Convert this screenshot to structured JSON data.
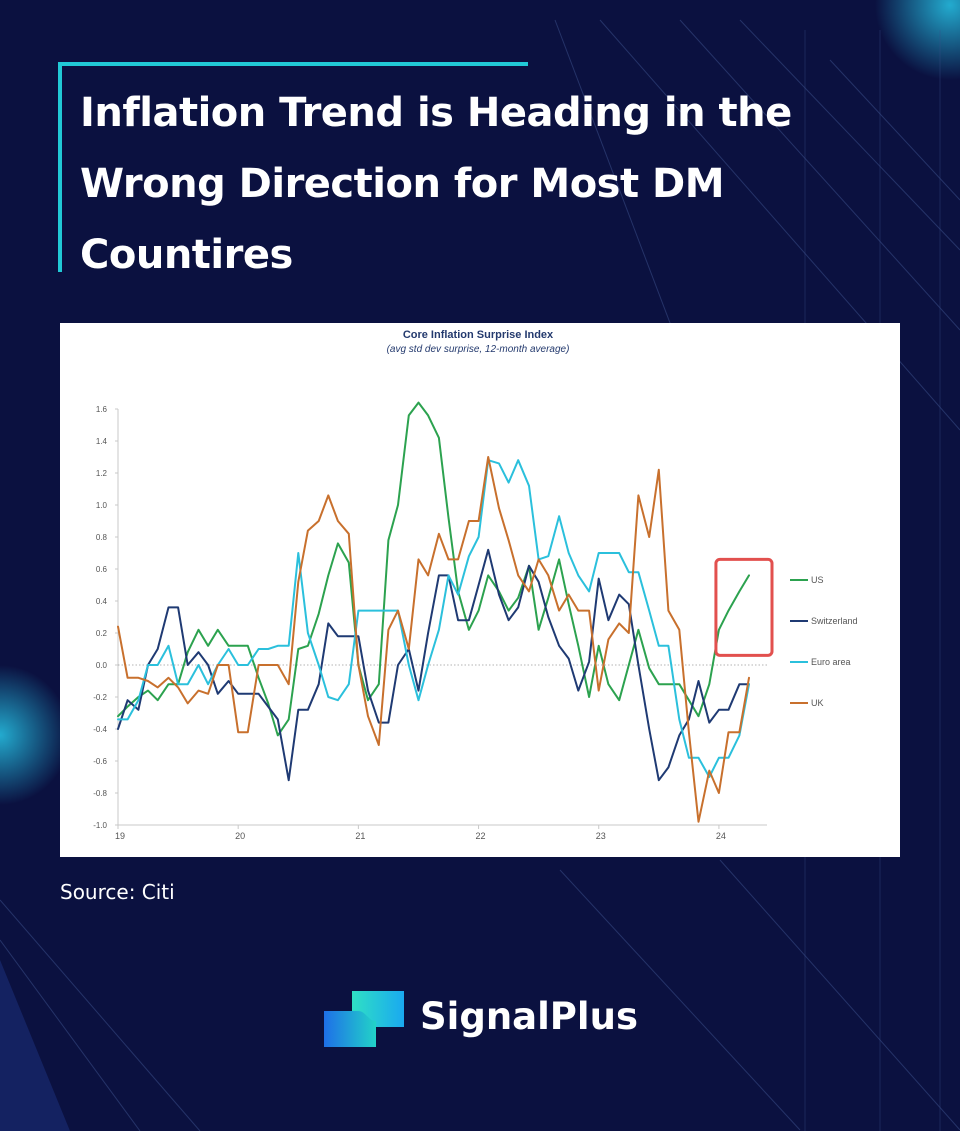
{
  "header": {
    "title_lines": [
      "Inflation Trend is Heading in the",
      "Wrong Direction for Most DM",
      "Countires"
    ]
  },
  "source": "Source: Citi",
  "brand": {
    "name": "SignalPlus",
    "logo_icon": "signalplus-logo-icon"
  },
  "colors": {
    "background": "#0b1140",
    "accent": "#21c9d6",
    "us": "#2ca24f",
    "switzerland": "#1f3a73",
    "euro_area": "#2bc0dc",
    "uk": "#c8702d",
    "highlight_box": "#e2504e"
  },
  "chart_data": {
    "type": "line",
    "title": "Core Inflation Surprise Index",
    "subtitle": "(avg std dev surprise, 12-month average)",
    "xlabel": "",
    "ylabel": "",
    "xlim": [
      2019.0,
      2024.4
    ],
    "ylim": [
      -1.0,
      1.6
    ],
    "yticks": [
      -1.0,
      -0.8,
      -0.6,
      -0.4,
      -0.2,
      0.0,
      0.2,
      0.4,
      0.6,
      0.8,
      1.0,
      1.2,
      1.4,
      1.6
    ],
    "ytick_labels": [
      "-1.0",
      "-0.8",
      "-0.6",
      "-0.4",
      "-0.2",
      "0.0",
      "0.2",
      "0.4",
      "0.6",
      "0.8",
      "1.0",
      "1.2",
      "1.4",
      "1.6"
    ],
    "xticks": [
      2019,
      2020,
      2021,
      2022,
      2023,
      2024
    ],
    "xtick_labels": [
      "19",
      "20",
      "21",
      "22",
      "23",
      "24"
    ],
    "grid": false,
    "zero_line": true,
    "legend_position": "right",
    "highlight": {
      "x_range": [
        2024.0,
        2024.4
      ],
      "y_range": [
        0.06,
        0.66
      ]
    },
    "series": [
      {
        "name": "US",
        "color": "#2ca24f",
        "x": [
          2019.0,
          2019.08,
          2019.17,
          2019.25,
          2019.33,
          2019.42,
          2019.5,
          2019.58,
          2019.67,
          2019.75,
          2019.83,
          2019.92,
          2020.0,
          2020.08,
          2020.17,
          2020.25,
          2020.33,
          2020.42,
          2020.5,
          2020.58,
          2020.67,
          2020.75,
          2020.83,
          2020.92,
          2021.0,
          2021.08,
          2021.17,
          2021.25,
          2021.33,
          2021.42,
          2021.5,
          2021.58,
          2021.67,
          2021.75,
          2021.83,
          2021.92,
          2022.0,
          2022.08,
          2022.17,
          2022.25,
          2022.33,
          2022.42,
          2022.5,
          2022.58,
          2022.67,
          2022.75,
          2022.83,
          2022.92,
          2023.0,
          2023.08,
          2023.17,
          2023.25,
          2023.33,
          2023.42,
          2023.5,
          2023.58,
          2023.67,
          2023.75,
          2023.83,
          2023.92,
          2024.0,
          2024.08,
          2024.17,
          2024.25
        ],
        "y": [
          -0.32,
          -0.26,
          -0.2,
          -0.16,
          -0.22,
          -0.12,
          -0.12,
          0.08,
          0.22,
          0.12,
          0.22,
          0.12,
          0.12,
          0.12,
          -0.08,
          -0.24,
          -0.44,
          -0.34,
          0.1,
          0.12,
          0.32,
          0.56,
          0.76,
          0.64,
          0.0,
          -0.22,
          -0.12,
          0.78,
          1.0,
          1.56,
          1.64,
          1.56,
          1.42,
          0.92,
          0.46,
          0.22,
          0.34,
          0.56,
          0.46,
          0.34,
          0.42,
          0.62,
          0.22,
          0.42,
          0.66,
          0.38,
          0.12,
          -0.2,
          0.12,
          -0.12,
          -0.22,
          0.0,
          0.22,
          -0.02,
          -0.12,
          -0.12,
          -0.12,
          -0.22,
          -0.32,
          -0.12,
          0.22,
          0.34,
          0.46,
          0.56
        ]
      },
      {
        "name": "Switzerland",
        "color": "#1f3a73",
        "x": [
          2019.0,
          2019.08,
          2019.17,
          2019.25,
          2019.33,
          2019.42,
          2019.5,
          2019.58,
          2019.67,
          2019.75,
          2019.83,
          2019.92,
          2020.0,
          2020.08,
          2020.17,
          2020.25,
          2020.33,
          2020.42,
          2020.5,
          2020.58,
          2020.67,
          2020.75,
          2020.83,
          2020.92,
          2021.0,
          2021.08,
          2021.17,
          2021.25,
          2021.33,
          2021.42,
          2021.5,
          2021.58,
          2021.67,
          2021.75,
          2021.83,
          2021.92,
          2022.0,
          2022.08,
          2022.17,
          2022.25,
          2022.33,
          2022.42,
          2022.5,
          2022.58,
          2022.67,
          2022.75,
          2022.83,
          2022.92,
          2023.0,
          2023.08,
          2023.17,
          2023.25,
          2023.33,
          2023.42,
          2023.5,
          2023.58,
          2023.67,
          2023.75,
          2023.83,
          2023.92,
          2024.0,
          2024.08,
          2024.17,
          2024.25
        ],
        "y": [
          -0.4,
          -0.22,
          -0.28,
          0.0,
          0.1,
          0.36,
          0.36,
          0.0,
          0.08,
          0.0,
          -0.18,
          -0.1,
          -0.18,
          -0.18,
          -0.18,
          -0.26,
          -0.34,
          -0.72,
          -0.28,
          -0.28,
          -0.12,
          0.26,
          0.18,
          0.18,
          0.18,
          -0.16,
          -0.36,
          -0.36,
          0.0,
          0.1,
          -0.16,
          0.2,
          0.56,
          0.56,
          0.28,
          0.28,
          0.5,
          0.72,
          0.44,
          0.28,
          0.36,
          0.62,
          0.52,
          0.3,
          0.12,
          0.04,
          -0.16,
          0.02,
          0.54,
          0.28,
          0.44,
          0.38,
          0.0,
          -0.4,
          -0.72,
          -0.64,
          -0.44,
          -0.34,
          -0.1,
          -0.36,
          -0.28,
          -0.28,
          -0.12,
          -0.12
        ]
      },
      {
        "name": "Euro area",
        "color": "#2bc0dc",
        "x": [
          2019.0,
          2019.08,
          2019.17,
          2019.25,
          2019.33,
          2019.42,
          2019.5,
          2019.58,
          2019.67,
          2019.75,
          2019.83,
          2019.92,
          2020.0,
          2020.08,
          2020.17,
          2020.25,
          2020.33,
          2020.42,
          2020.5,
          2020.58,
          2020.67,
          2020.75,
          2020.83,
          2020.92,
          2021.0,
          2021.08,
          2021.17,
          2021.25,
          2021.33,
          2021.42,
          2021.5,
          2021.58,
          2021.67,
          2021.75,
          2021.83,
          2021.92,
          2022.0,
          2022.08,
          2022.17,
          2022.25,
          2022.33,
          2022.42,
          2022.5,
          2022.58,
          2022.67,
          2022.75,
          2022.83,
          2022.92,
          2023.0,
          2023.08,
          2023.17,
          2023.25,
          2023.33,
          2023.42,
          2023.5,
          2023.58,
          2023.67,
          2023.75,
          2023.83,
          2023.92,
          2024.0,
          2024.08,
          2024.17,
          2024.25
        ],
        "y": [
          -0.34,
          -0.34,
          -0.22,
          0.0,
          0.0,
          0.12,
          -0.12,
          -0.12,
          0.0,
          -0.12,
          0.0,
          0.1,
          0.0,
          0.0,
          0.1,
          0.1,
          0.12,
          0.12,
          0.7,
          0.2,
          0.0,
          -0.2,
          -0.22,
          -0.12,
          0.34,
          0.34,
          0.34,
          0.34,
          0.34,
          0.0,
          -0.22,
          0.0,
          0.22,
          0.56,
          0.44,
          0.68,
          0.8,
          1.28,
          1.26,
          1.14,
          1.28,
          1.12,
          0.66,
          0.68,
          0.93,
          0.7,
          0.56,
          0.46,
          0.7,
          0.7,
          0.7,
          0.58,
          0.58,
          0.34,
          0.12,
          0.12,
          -0.34,
          -0.58,
          -0.58,
          -0.7,
          -0.58,
          -0.58,
          -0.44,
          -0.12
        ]
      },
      {
        "name": "UK",
        "color": "#c8702d",
        "x": [
          2019.0,
          2019.08,
          2019.17,
          2019.25,
          2019.33,
          2019.42,
          2019.5,
          2019.58,
          2019.67,
          2019.75,
          2019.83,
          2019.92,
          2020.0,
          2020.08,
          2020.17,
          2020.25,
          2020.33,
          2020.42,
          2020.5,
          2020.58,
          2020.67,
          2020.75,
          2020.83,
          2020.92,
          2021.0,
          2021.08,
          2021.17,
          2021.25,
          2021.33,
          2021.42,
          2021.5,
          2021.58,
          2021.67,
          2021.75,
          2021.83,
          2021.92,
          2022.0,
          2022.08,
          2022.17,
          2022.25,
          2022.33,
          2022.42,
          2022.5,
          2022.58,
          2022.67,
          2022.75,
          2022.83,
          2022.92,
          2023.0,
          2023.08,
          2023.17,
          2023.25,
          2023.33,
          2023.42,
          2023.5,
          2023.58,
          2023.67,
          2023.75,
          2023.83,
          2023.92,
          2024.0,
          2024.08,
          2024.17,
          2024.25
        ],
        "y": [
          0.24,
          -0.08,
          -0.08,
          -0.1,
          -0.14,
          -0.08,
          -0.14,
          -0.24,
          -0.16,
          -0.18,
          0.0,
          0.0,
          -0.42,
          -0.42,
          0.0,
          0.0,
          0.0,
          -0.12,
          0.52,
          0.84,
          0.9,
          1.06,
          0.9,
          0.82,
          0.0,
          -0.32,
          -0.5,
          0.22,
          0.34,
          0.1,
          0.66,
          0.56,
          0.82,
          0.66,
          0.66,
          0.9,
          0.9,
          1.3,
          0.98,
          0.78,
          0.56,
          0.46,
          0.66,
          0.56,
          0.34,
          0.44,
          0.34,
          0.34,
          -0.16,
          0.16,
          0.26,
          0.2,
          1.06,
          0.8,
          1.22,
          0.34,
          0.22,
          -0.42,
          -0.98,
          -0.66,
          -0.8,
          -0.42,
          -0.42,
          -0.08
        ]
      }
    ]
  }
}
